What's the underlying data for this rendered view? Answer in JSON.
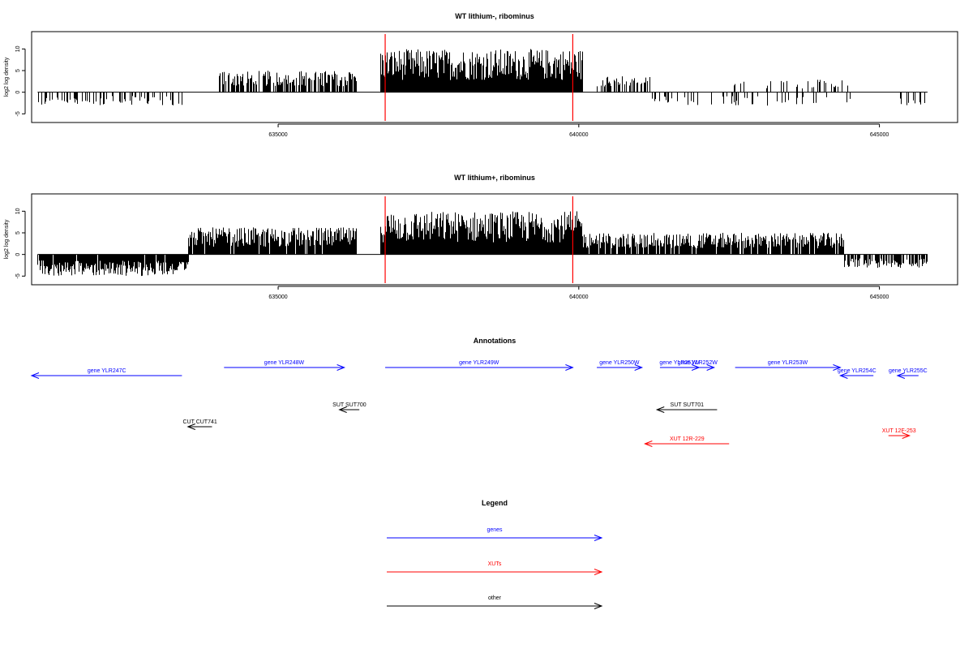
{
  "colors": {
    "genes": "#0000ff",
    "XUTs": "#ff0000",
    "other": "#000000",
    "boundary": "#ff0000",
    "signal": "#000000"
  },
  "chart_data": [
    {
      "type": "bar",
      "title": "WT lithium-, ribominus",
      "ylabel": "log2 log density",
      "xlim": [
        630900,
        646300
      ],
      "ylim": [
        -7,
        14
      ],
      "yticks": [
        -5,
        0,
        5,
        10
      ],
      "xticks": [
        635000,
        640000,
        645000
      ],
      "xtick_labels": [
        "635000",
        "640000",
        "645000"
      ],
      "boundaries": [
        636780,
        639900
      ],
      "segments": [
        {
          "start": 631000,
          "end": 633400,
          "level": -2.5,
          "density": 0.35
        },
        {
          "start": 634000,
          "end": 636300,
          "level": 4,
          "density": 0.7
        },
        {
          "start": 636700,
          "end": 640050,
          "level": 8,
          "density": 1.0
        },
        {
          "start": 640300,
          "end": 641200,
          "level": 3,
          "density": 0.5
        },
        {
          "start": 641200,
          "end": 644500,
          "level": -2.5,
          "density": 0.15
        },
        {
          "start": 642500,
          "end": 644500,
          "level": 2.5,
          "density": 0.2
        },
        {
          "start": 645200,
          "end": 645800,
          "level": -2.5,
          "density": 0.15
        }
      ]
    },
    {
      "type": "bar",
      "title": "WT lithium+, ribominus",
      "ylabel": "log2 log density",
      "xlim": [
        630900,
        646300
      ],
      "ylim": [
        -7,
        14
      ],
      "yticks": [
        -5,
        0,
        5,
        10
      ],
      "xticks": [
        635000,
        640000,
        645000
      ],
      "xtick_labels": [
        "635000",
        "640000",
        "645000"
      ],
      "boundaries": [
        636780,
        639900
      ],
      "segments": [
        {
          "start": 631000,
          "end": 633500,
          "level": -4,
          "density": 0.95
        },
        {
          "start": 633500,
          "end": 636300,
          "level": 5,
          "density": 0.95
        },
        {
          "start": 636700,
          "end": 640050,
          "level": 8,
          "density": 1.0
        },
        {
          "start": 640050,
          "end": 644400,
          "level": 4,
          "density": 0.9
        },
        {
          "start": 644400,
          "end": 645800,
          "level": -2.5,
          "density": 0.7
        }
      ]
    }
  ],
  "annotations": {
    "title": "Annotations",
    "features": [
      {
        "label": "gene YLR247C",
        "kind": "genes",
        "start": 630900,
        "end": 633400,
        "dir": "left",
        "row": 2
      },
      {
        "label": "gene YLR248W",
        "kind": "genes",
        "start": 634100,
        "end": 636100,
        "dir": "right",
        "row": 1
      },
      {
        "label": "gene YLR249W",
        "kind": "genes",
        "start": 636780,
        "end": 639900,
        "dir": "right",
        "row": 1
      },
      {
        "label": "gene YLR250W",
        "kind": "genes",
        "start": 640300,
        "end": 641050,
        "dir": "right",
        "row": 1
      },
      {
        "label": "gene YLR251W",
        "kind": "genes",
        "start": 641350,
        "end": 642000,
        "dir": "right",
        "row": 1
      },
      {
        "label": "gene YLR252W",
        "kind": "genes",
        "start": 641700,
        "end": 642250,
        "dir": "right",
        "row": 1
      },
      {
        "label": "gene YLR253W",
        "kind": "genes",
        "start": 642600,
        "end": 644350,
        "dir": "right",
        "row": 1
      },
      {
        "label": "gene YLR254C",
        "kind": "genes",
        "start": 644350,
        "end": 644900,
        "dir": "left",
        "row": 2
      },
      {
        "label": "gene YLR255C",
        "kind": "genes",
        "start": 645300,
        "end": 645650,
        "dir": "left",
        "row": 2
      },
      {
        "label": "SUT SUT700",
        "kind": "other",
        "start": 636020,
        "end": 636350,
        "dir": "left",
        "row": 3
      },
      {
        "label": "SUT SUT701",
        "kind": "other",
        "start": 641300,
        "end": 642300,
        "dir": "left",
        "row": 3
      },
      {
        "label": "CUT CUT741",
        "kind": "other",
        "start": 633500,
        "end": 633900,
        "dir": "left",
        "row": 4
      },
      {
        "label": "XUT 12R-229",
        "kind": "XUTs",
        "start": 641100,
        "end": 642500,
        "dir": "left",
        "row": 5
      },
      {
        "label": "XUT 12F-253",
        "kind": "XUTs",
        "start": 645150,
        "end": 645500,
        "dir": "right",
        "row": 6
      }
    ]
  },
  "legend": {
    "title": "Legend",
    "items": [
      {
        "label": "genes",
        "kind": "genes"
      },
      {
        "label": "XUTs",
        "kind": "XUTs"
      },
      {
        "label": "other",
        "kind": "other"
      }
    ]
  }
}
